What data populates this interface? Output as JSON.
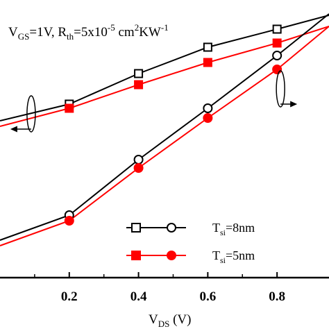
{
  "chart_data": {
    "type": "line",
    "title_parts": {
      "v": "V",
      "v_sub": "GS",
      "v_val": "=1V, ",
      "r": "R",
      "r_sub": "th",
      "r_val": "=5x10",
      "exp": "-5",
      "unit_a": " cm",
      "unit_exp": "2",
      "unit_b": "KW",
      "unit_exp2": "-1"
    },
    "xlabel_parts": {
      "main": "V",
      "sub": "DS",
      "unit": " (V)"
    },
    "x_ticks": [
      "0.2",
      "0.4",
      "0.6",
      "0.8"
    ],
    "x_tick_values": [
      0.2,
      0.4,
      0.6,
      0.8
    ],
    "xlim": [
      0.0,
      0.95
    ],
    "ylim": [
      0,
      100
    ],
    "colors": {
      "black": "#000000",
      "red": "#ff0000"
    },
    "legend": [
      {
        "text_main": "T",
        "text_sub": "si",
        "text_val": "=8nm",
        "color": "#000000",
        "marker": "open"
      },
      {
        "text_main": "T",
        "text_sub": "si",
        "text_val": "=5nm",
        "color": "#ff0000",
        "marker": "filled"
      }
    ],
    "series": [
      {
        "axis": "left",
        "color": "#000000",
        "marker": "open-square",
        "x": [
          0.0,
          0.2,
          0.4,
          0.6,
          0.8,
          0.95
        ],
        "y": [
          56.5,
          62.5,
          73.5,
          83.0,
          89.5,
          94.5
        ]
      },
      {
        "axis": "left",
        "color": "#ff0000",
        "marker": "filled-square",
        "x": [
          0.0,
          0.2,
          0.4,
          0.6,
          0.8,
          0.95
        ],
        "y": [
          54.5,
          61.0,
          69.5,
          77.5,
          84.5,
          90.5
        ]
      },
      {
        "axis": "right",
        "color": "#000000",
        "marker": "open-circle",
        "x": [
          0.0,
          0.2,
          0.4,
          0.6,
          0.8,
          0.95
        ],
        "y": [
          13.5,
          22.5,
          42.5,
          61.0,
          80.0,
          95.0
        ]
      },
      {
        "axis": "right",
        "color": "#ff0000",
        "marker": "filled-circle",
        "x": [
          0.0,
          0.2,
          0.4,
          0.6,
          0.8,
          0.95
        ],
        "y": [
          11.5,
          20.5,
          39.5,
          57.5,
          75.0,
          90.5
        ]
      }
    ],
    "annotations": [
      {
        "kind": "axis-pointer",
        "direction": "left",
        "x": 0.09,
        "y": 59.0
      },
      {
        "kind": "axis-pointer",
        "direction": "right",
        "x": 0.81,
        "y": 68.0
      }
    ]
  }
}
